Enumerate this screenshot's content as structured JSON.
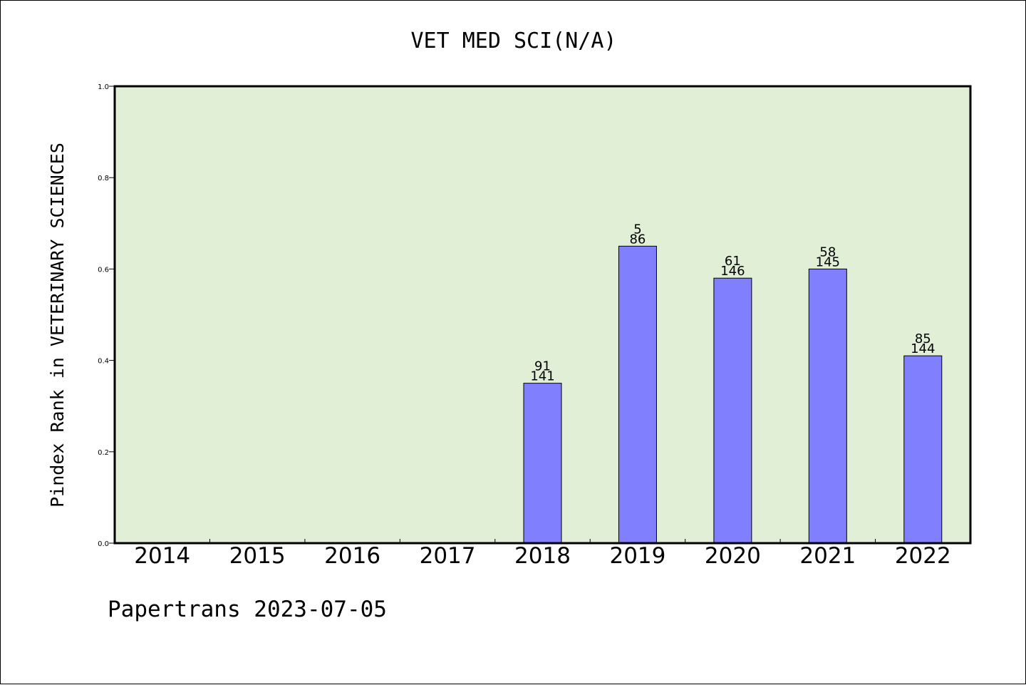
{
  "chart_data": {
    "type": "bar",
    "title": "VET MED SCI(N/A)",
    "ylabel": "Pindex Rank in VETERINARY SCIENCES",
    "xlabel": "",
    "categories": [
      "2014",
      "2015",
      "2016",
      "2017",
      "2018",
      "2019",
      "2020",
      "2021",
      "2022"
    ],
    "values": [
      null,
      null,
      null,
      null,
      0.35,
      0.65,
      0.58,
      0.6,
      0.41
    ],
    "labels_top": [
      null,
      null,
      null,
      null,
      "91",
      "5",
      "61",
      "58",
      "85"
    ],
    "labels_bottom": [
      null,
      null,
      null,
      null,
      "141",
      "86",
      "146",
      "145",
      "144"
    ],
    "ylim": [
      0,
      1.0
    ],
    "yticks": [
      "0.0",
      "0.2",
      "0.4",
      "0.6",
      "0.8",
      "1.0"
    ],
    "grid": false,
    "colors": {
      "plot_background": "#e1efd6",
      "bar": "#8080ff",
      "bar_edge": "#000000"
    }
  },
  "footer": "Papertrans 2023-07-05"
}
